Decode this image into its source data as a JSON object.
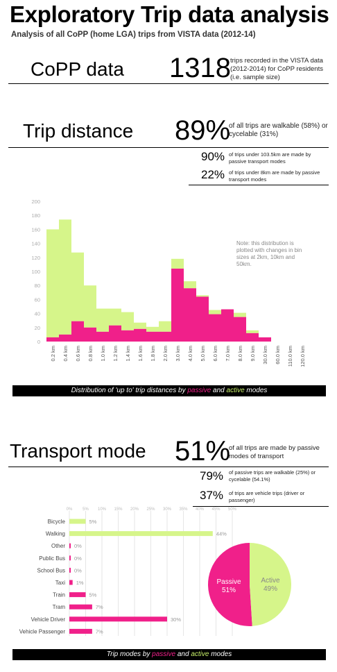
{
  "header": {
    "title": "Exploratory Trip data analysis",
    "subtitle": "Analysis of all CoPP (home LGA) trips from VISTA data  (2012-14)"
  },
  "copp": {
    "label": "CoPP data",
    "value": "1318",
    "desc": "trips recorded in the VISTA data (2012-2014) for CoPP residents (i.e. sample size)"
  },
  "trip_distance": {
    "label": "Trip distance",
    "value": "89%",
    "desc": "of all trips are walkable (58%) or cycelable (31%)",
    "stats": [
      {
        "value": "90%",
        "desc": "of trips under 103.5km are made by passive transport modes"
      },
      {
        "value": "22%",
        "desc": "of trips under 8km are made by passive transport modes"
      }
    ],
    "banner": {
      "pre": "Distribution of 'up to' trip distances by ",
      "passive": "passive",
      "mid": " and ",
      "active": "active",
      "post": " modes"
    }
  },
  "transport_mode": {
    "label": "Transport mode",
    "value": "51%",
    "desc": "of all trips are made by passive modes of transport",
    "stats": [
      {
        "value": "79%",
        "desc": "of passive trips are walkable (25%) or cycelable (54.1%)"
      },
      {
        "value": "37%",
        "desc": "of trips are  vehicle trips (driver or passenger)"
      }
    ],
    "banner": {
      "pre": "Trip modes by ",
      "passive": "passive",
      "mid": " and ",
      "active": "active",
      "post": " modes"
    }
  },
  "colors": {
    "passive": "#f0208a",
    "active": "#d6f58a",
    "active_text": "#c8f06a"
  },
  "chart_data": [
    {
      "type": "bar",
      "stacked": true,
      "categories": [
        "0.2 km",
        "0.4 km",
        "0.6 km",
        "0.8 km",
        "1.0 km",
        "1.2 km",
        "1.4 km",
        "1.6 km",
        "1.8 km",
        "2.0 km",
        "3.0 km",
        "4.0 km",
        "5.0 km",
        "6.0 km",
        "7.0 km",
        "8.0 km",
        "9.0 km",
        "30.0 km",
        "60.0 km",
        "110.0 km",
        "120.0 km"
      ],
      "series": [
        {
          "values": [
            6,
            10,
            29,
            20,
            14,
            23,
            16,
            18,
            14,
            14,
            104,
            76,
            64,
            39,
            46,
            35,
            12,
            6,
            0,
            0,
            0
          ]
        },
        {
          "values": [
            154,
            164,
            98,
            60,
            33,
            24,
            26,
            9,
            7,
            15,
            14,
            10,
            2,
            6,
            0,
            6,
            4,
            0,
            0,
            0,
            0
          ]
        }
      ],
      "ylim": [
        0,
        200
      ],
      "yticks": [
        0,
        20,
        40,
        60,
        80,
        100,
        120,
        140,
        160,
        180,
        200
      ],
      "note": "Note: this distribution is plotted with changes in bin sizes at 2km, 10km and 50km.",
      "grid": false
    },
    {
      "type": "bar",
      "orientation": "horizontal",
      "categories": [
        "Bicycle",
        "Walking",
        "Other",
        "Public Bus",
        "School Bus",
        "Taxi",
        "Train",
        "Tram",
        "Vehicle Driver",
        "Vehicle Passenger"
      ],
      "values": [
        5,
        44,
        0,
        0,
        0,
        1,
        5,
        7,
        30,
        7
      ],
      "labels": [
        "5%",
        "44%",
        "0%",
        "0%",
        "0%",
        "1%",
        "5%",
        "7%",
        "30%",
        "7%"
      ],
      "mode_class": [
        "active",
        "active",
        "passive",
        "passive",
        "passive",
        "passive",
        "passive",
        "passive",
        "passive",
        "passive"
      ],
      "xticks": [
        "0%",
        "5%",
        "10%",
        "15%",
        "20%",
        "25%",
        "30%",
        "35%",
        "40%",
        "45%",
        "50%"
      ],
      "xlim": [
        0,
        50
      ],
      "grid": true
    },
    {
      "type": "pie",
      "slices": [
        {
          "name": "Passive",
          "value": 51,
          "label": "51%"
        },
        {
          "name": "Active",
          "value": 49,
          "label": "49%"
        }
      ]
    }
  ]
}
